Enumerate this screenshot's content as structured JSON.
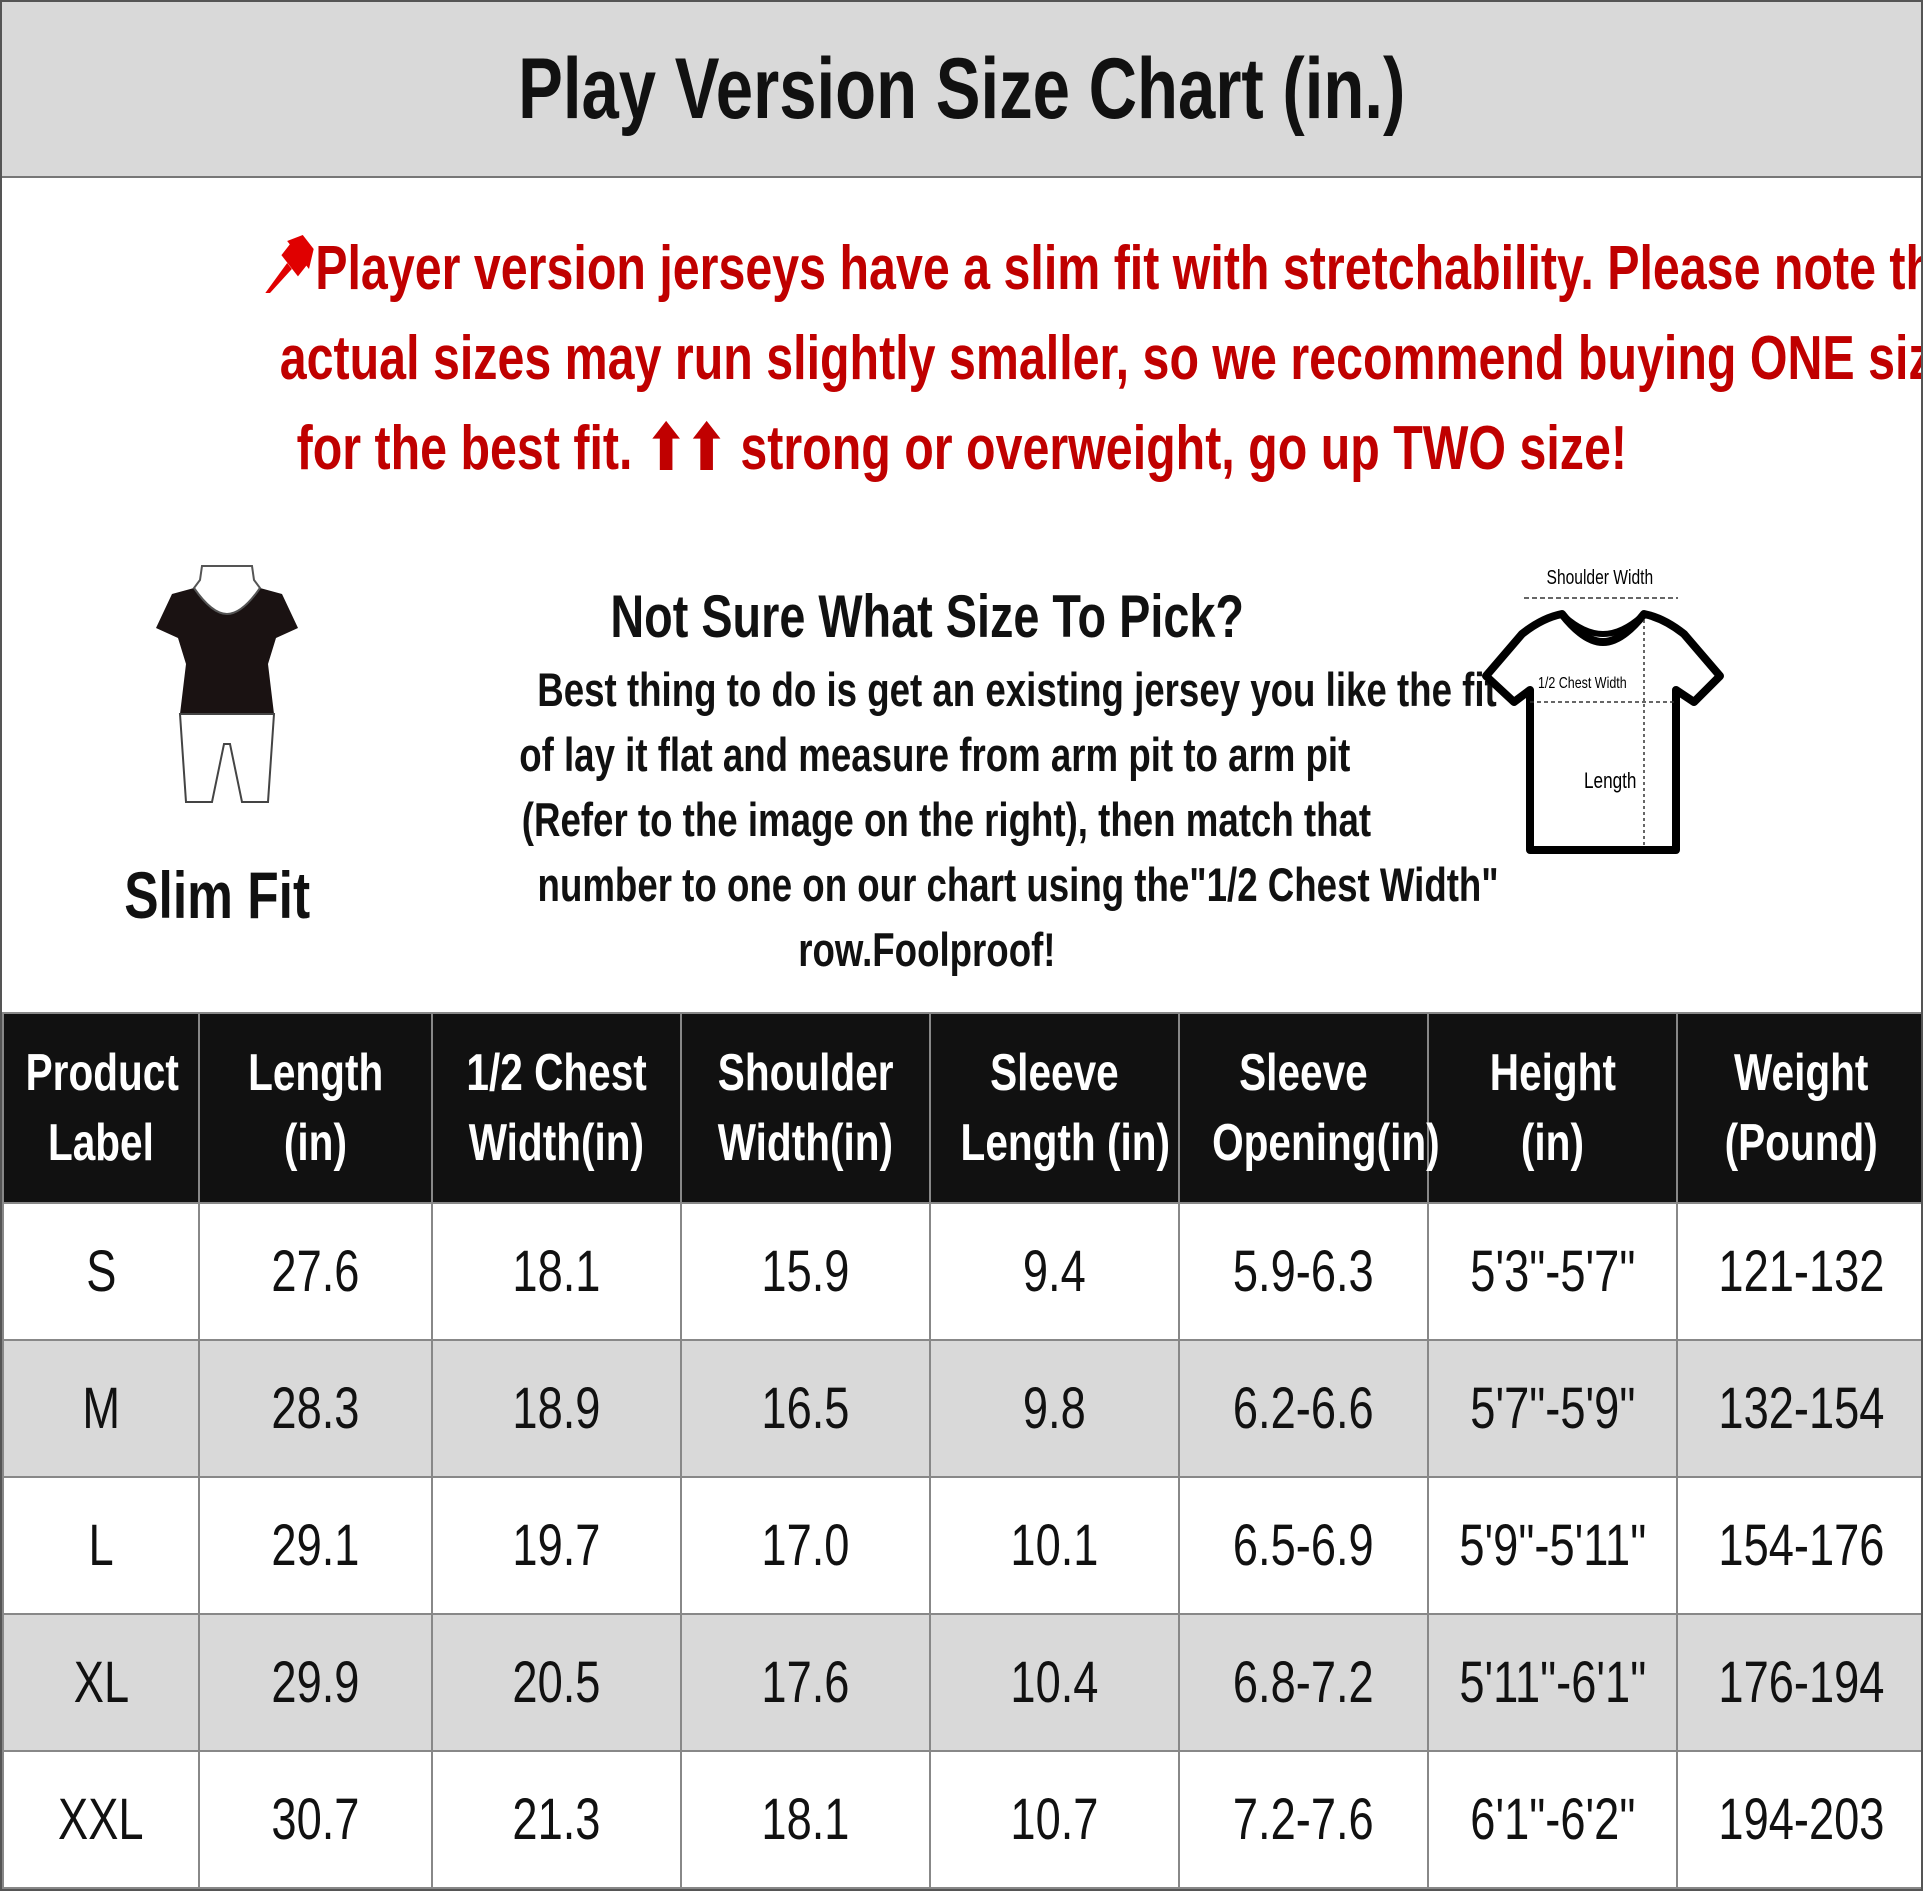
{
  "title": "Play Version Size Chart (in.)",
  "notice": {
    "icon": "pushpin-icon",
    "lines": [
      "Player version jerseys have a slim fit with stretchability. Please note that",
      "actual sizes may run slightly smaller, so we recommend buying ONE size larger",
      "for the best fit. ⬆⬆ strong or overweight, go up TWO size!"
    ],
    "color": "#c00000"
  },
  "fit": {
    "label": "Slim Fit",
    "icon": "mannequin-icon"
  },
  "help": {
    "title": "Not Sure What Size To Pick?",
    "lines": [
      "Best thing to do is get an existing jersey you like the fit",
      "of lay it flat and measure from arm pit to arm pit",
      "(Refer to the image on the right), then match that",
      "number to one on our chart using the\"1/2 Chest Width\"",
      "row.Foolproof!"
    ]
  },
  "diagram": {
    "shoulder": "Shoulder Width",
    "chest": "1/2 Chest Width",
    "length": "Length"
  },
  "table": {
    "headers": [
      [
        "Product",
        "Label"
      ],
      [
        "Length",
        "(in)"
      ],
      [
        "1/2 Chest",
        "Width(in)"
      ],
      [
        "Shoulder",
        "Width(in)"
      ],
      [
        "Sleeve",
        "Length (in)"
      ],
      [
        "Sleeve",
        "Opening(in)"
      ],
      [
        "Height",
        "(in)"
      ],
      [
        "Weight",
        "(Pound)"
      ]
    ],
    "rows": [
      [
        "S",
        "27.6",
        "18.1",
        "15.9",
        "9.4",
        "5.9-6.3",
        "5'3\"-5'7\"",
        "121-132"
      ],
      [
        "M",
        "28.3",
        "18.9",
        "16.5",
        "9.8",
        "6.2-6.6",
        "5'7\"-5'9\"",
        "132-154"
      ],
      [
        "L",
        "29.1",
        "19.7",
        "17.0",
        "10.1",
        "6.5-6.9",
        "5'9\"-5'11\"",
        "154-176"
      ],
      [
        "XL",
        "29.9",
        "20.5",
        "17.6",
        "10.4",
        "6.8-7.2",
        "5'11\"-6'1\"",
        "176-194"
      ],
      [
        "XXL",
        "30.7",
        "21.3",
        "18.1",
        "10.7",
        "7.2-7.6",
        "6'1\"-6'2\"",
        "194-203"
      ]
    ]
  }
}
